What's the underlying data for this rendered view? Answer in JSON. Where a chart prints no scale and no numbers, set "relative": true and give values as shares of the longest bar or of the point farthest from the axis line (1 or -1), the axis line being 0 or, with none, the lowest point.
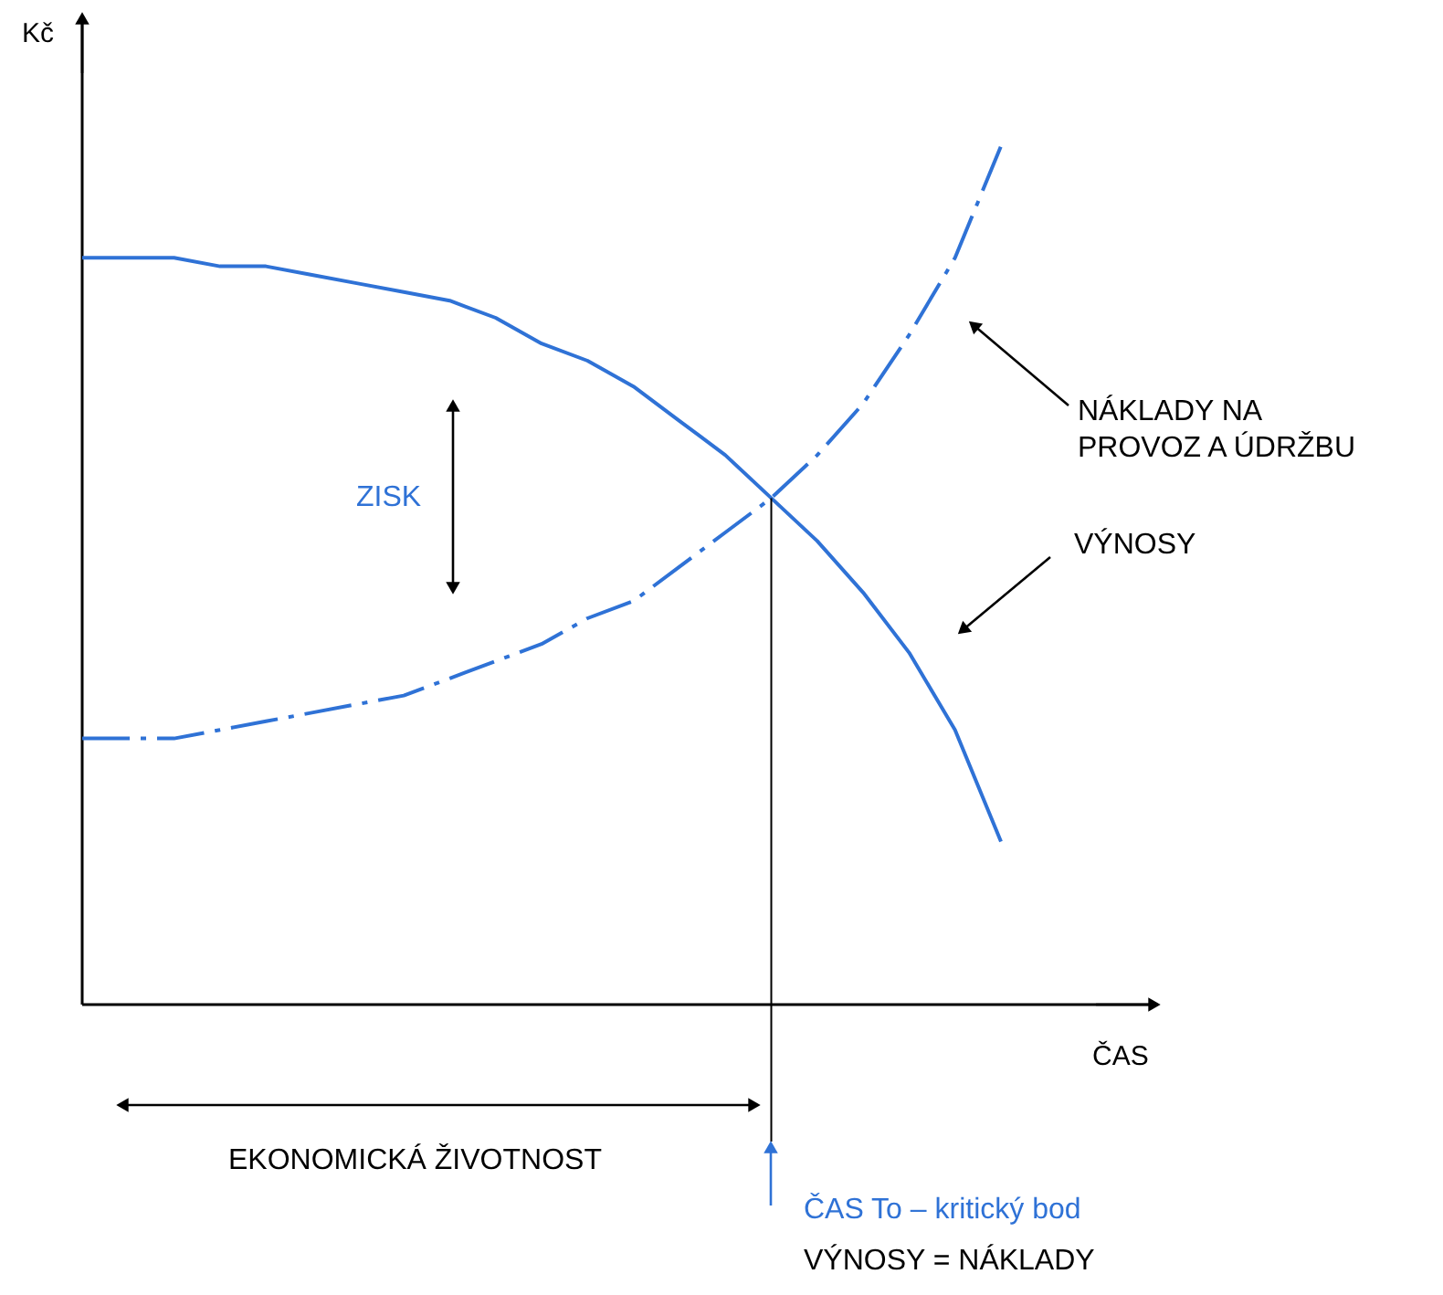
{
  "chart_data": {
    "type": "line",
    "relative": true,
    "xlabel": "ČAS",
    "ylabel": "Kč",
    "grid": false,
    "categories": [
      null,
      null,
      null,
      null,
      null,
      null,
      null,
      null,
      null,
      null,
      null,
      null,
      null,
      null,
      null,
      null,
      null,
      null,
      null,
      null,
      null
    ],
    "series": [
      {
        "name": "VÝNOSY",
        "color": "#2f72d6",
        "line_style": "solid",
        "values": [
          0.87,
          0.87,
          0.87,
          0.86,
          0.86,
          0.85,
          0.84,
          0.83,
          0.82,
          0.8,
          0.77,
          0.75,
          0.72,
          0.68,
          0.64,
          0.59,
          0.54,
          0.48,
          0.41,
          0.32,
          0.19
        ]
      },
      {
        "name": "NÁKLADY NA PROVOZ A ÚDRŽBU",
        "color": "#2f72d6",
        "line_style": "dashed",
        "values": [
          0.31,
          0.31,
          0.31,
          0.32,
          0.33,
          0.34,
          0.35,
          0.36,
          0.38,
          0.4,
          0.42,
          0.45,
          0.47,
          0.51,
          0.55,
          0.59,
          0.64,
          0.7,
          0.78,
          0.87,
          1.0
        ]
      }
    ],
    "annotations": [
      "ZISK",
      "EKONOMICKÁ ŽIVOTNOST",
      "ČAS To – kritický bod",
      "VÝNOSY = NÁKLADY"
    ]
  }
}
